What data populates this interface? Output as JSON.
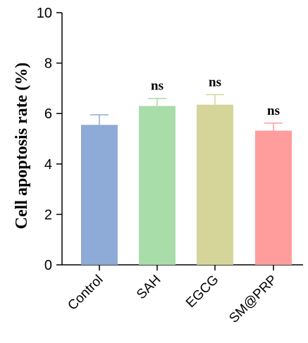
{
  "chart_data": {
    "type": "bar",
    "title": "",
    "xlabel": "",
    "ylabel": "Cell apoptosis rate (%)",
    "ylim": [
      0,
      10
    ],
    "yticks": [
      "0",
      "2",
      "4",
      "6",
      "8",
      "10"
    ],
    "grid": false,
    "categories": [
      "Control",
      "SAH",
      "EGCG",
      "SM@PRP"
    ],
    "values": [
      5.55,
      6.3,
      6.35,
      5.32
    ],
    "errors": [
      0.4,
      0.3,
      0.4,
      0.3
    ],
    "significance": [
      "",
      "ns",
      "ns",
      "ns"
    ],
    "colors": [
      "#8eaad6",
      "#a8dca8",
      "#d5d59a",
      "#ff9d9d"
    ]
  }
}
